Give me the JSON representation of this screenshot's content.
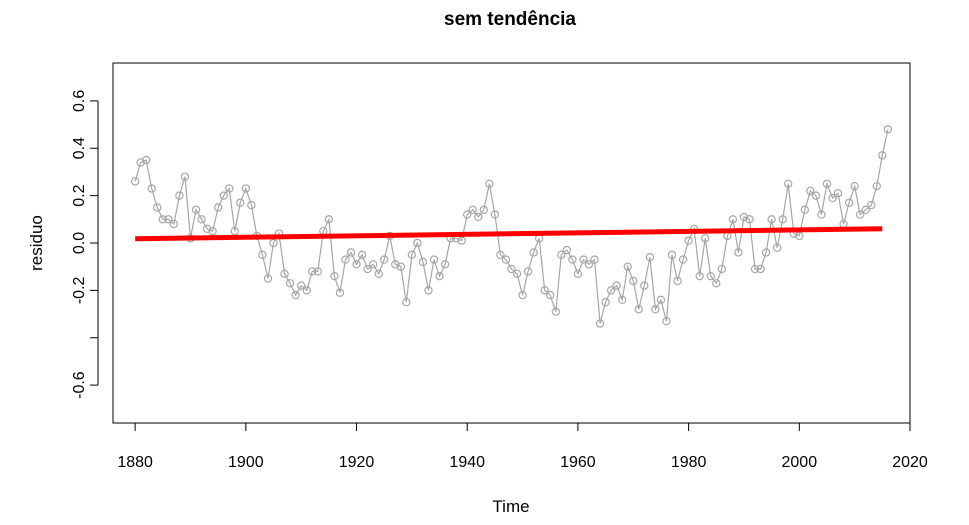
{
  "chart_data": {
    "type": "line",
    "title": "sem tendência",
    "xlabel": "Time",
    "ylabel": "residuo",
    "xlim": [
      1876,
      2020
    ],
    "ylim": [
      -0.76,
      0.76
    ],
    "x_ticks": [
      {
        "value": 1880,
        "label": "1880"
      },
      {
        "value": 1900,
        "label": "1900"
      },
      {
        "value": 1920,
        "label": "1920"
      },
      {
        "value": 1940,
        "label": "1940"
      },
      {
        "value": 1960,
        "label": "1960"
      },
      {
        "value": 1980,
        "label": "1980"
      },
      {
        "value": 2000,
        "label": "2000"
      },
      {
        "value": 2020,
        "label": "2020"
      }
    ],
    "y_ticks": [
      {
        "value": -0.6,
        "label": "-0.6"
      },
      {
        "value": -0.4,
        "label": ""
      },
      {
        "value": -0.2,
        "label": "-0.2"
      },
      {
        "value": 0.0,
        "label": "0.0"
      },
      {
        "value": 0.2,
        "label": "0.2"
      },
      {
        "value": 0.4,
        "label": "0.4"
      },
      {
        "value": 0.6,
        "label": "0.6"
      }
    ],
    "grid": false,
    "legend": "none",
    "series": [
      {
        "style": "line-points",
        "color": "#a6a6a6",
        "x": [
          1880,
          1881,
          1882,
          1883,
          1884,
          1885,
          1886,
          1887,
          1888,
          1889,
          1890,
          1891,
          1892,
          1893,
          1894,
          1895,
          1896,
          1897,
          1898,
          1899,
          1900,
          1901,
          1902,
          1903,
          1904,
          1905,
          1906,
          1907,
          1908,
          1909,
          1910,
          1911,
          1912,
          1913,
          1914,
          1915,
          1916,
          1917,
          1918,
          1919,
          1920,
          1921,
          1922,
          1923,
          1924,
          1925,
          1926,
          1927,
          1928,
          1929,
          1930,
          1931,
          1932,
          1933,
          1934,
          1935,
          1936,
          1937,
          1938,
          1939,
          1940,
          1941,
          1942,
          1943,
          1944,
          1945,
          1946,
          1947,
          1948,
          1949,
          1950,
          1951,
          1952,
          1953,
          1954,
          1955,
          1956,
          1957,
          1958,
          1959,
          1960,
          1961,
          1962,
          1963,
          1964,
          1965,
          1966,
          1967,
          1968,
          1969,
          1970,
          1971,
          1972,
          1973,
          1974,
          1975,
          1976,
          1977,
          1978,
          1979,
          1980,
          1981,
          1982,
          1983,
          1984,
          1985,
          1986,
          1987,
          1988,
          1989,
          1990,
          1991,
          1992,
          1993,
          1994,
          1995,
          1996,
          1997,
          1998,
          1999,
          2000,
          2001,
          2002,
          2003,
          2004,
          2005,
          2006,
          2007,
          2008,
          2009,
          2010,
          2011,
          2012,
          2013,
          2014,
          2015,
          2016
        ],
        "values": [
          0.26,
          0.34,
          0.35,
          0.23,
          0.15,
          0.1,
          0.1,
          0.08,
          0.2,
          0.28,
          0.02,
          0.14,
          0.1,
          0.06,
          0.05,
          0.15,
          0.2,
          0.23,
          0.05,
          0.17,
          0.23,
          0.16,
          0.03,
          -0.05,
          -0.15,
          0.0,
          0.04,
          -0.13,
          -0.17,
          -0.22,
          -0.18,
          -0.2,
          -0.12,
          -0.12,
          0.05,
          0.1,
          -0.14,
          -0.21,
          -0.07,
          -0.04,
          -0.09,
          -0.05,
          -0.11,
          -0.09,
          -0.13,
          -0.07,
          0.03,
          -0.09,
          -0.1,
          -0.25,
          -0.05,
          0.0,
          -0.08,
          -0.2,
          -0.07,
          -0.14,
          -0.09,
          0.02,
          0.02,
          0.01,
          0.12,
          0.14,
          0.11,
          0.14,
          0.25,
          0.12,
          -0.05,
          -0.07,
          -0.11,
          -0.13,
          -0.22,
          -0.12,
          -0.04,
          0.02,
          -0.2,
          -0.22,
          -0.29,
          -0.05,
          -0.03,
          -0.07,
          -0.13,
          -0.07,
          -0.09,
          -0.07,
          -0.34,
          -0.25,
          -0.2,
          -0.18,
          -0.24,
          -0.1,
          -0.16,
          -0.28,
          -0.18,
          -0.06,
          -0.28,
          -0.24,
          -0.33,
          -0.05,
          -0.16,
          -0.07,
          0.01,
          0.06,
          -0.14,
          0.02,
          -0.14,
          -0.17,
          -0.11,
          0.03,
          0.1,
          -0.04,
          0.11,
          0.1,
          -0.11,
          -0.11,
          -0.04,
          0.1,
          -0.02,
          0.1,
          0.25,
          0.04,
          0.03,
          0.14,
          0.22,
          0.2,
          0.12,
          0.25,
          0.19,
          0.21,
          0.08,
          0.17,
          0.24,
          0.12,
          0.14,
          0.16,
          0.24,
          0.37,
          0.48
        ]
      },
      {
        "style": "trend-line",
        "color": "#ff0000",
        "x": [
          1880,
          2015
        ],
        "values": [
          0.018,
          0.06
        ]
      }
    ]
  }
}
